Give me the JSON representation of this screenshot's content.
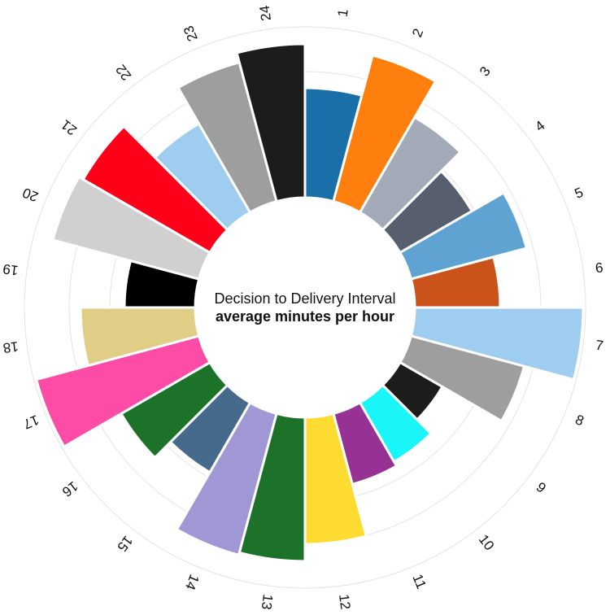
{
  "chart_data": {
    "type": "radial-bar",
    "title": "Decision to Delivery Interval",
    "subtitle": "average minutes per hour",
    "categories": [
      "1",
      "2",
      "3",
      "4",
      "5",
      "6",
      "7",
      "8",
      "9",
      "10",
      "11",
      "12",
      "13",
      "14",
      "15",
      "16",
      "17",
      "18",
      "19",
      "20",
      "21",
      "22",
      "23",
      "24"
    ],
    "values": [
      22.5,
      31,
      22.5,
      17,
      24.5,
      17.5,
      34.5,
      24,
      10,
      14,
      15,
      26,
      29.5,
      30,
      16.5,
      21,
      34.5,
      23.5,
      14.5,
      31,
      30,
      21,
      29.5,
      31.5
    ],
    "colors": [
      "#1a6fa8",
      "#ff7f0e",
      "#a3abb9",
      "#575f6e",
      "#5ea3d1",
      "#c9531a",
      "#9ecdf0",
      "#9e9e9e",
      "#1c1c1c",
      "#19f5f8",
      "#973295",
      "#fedb31",
      "#1b7228",
      "#9f98d5",
      "#456a8c",
      "#1b7228",
      "#fd4ca5",
      "#e0cd86",
      "#000000",
      "#d0d0d0",
      "#fe0018",
      "#9ecdf0",
      "#9e9e9e",
      "#1c1c1c"
    ],
    "ylim": [
      0,
      35
    ]
  }
}
